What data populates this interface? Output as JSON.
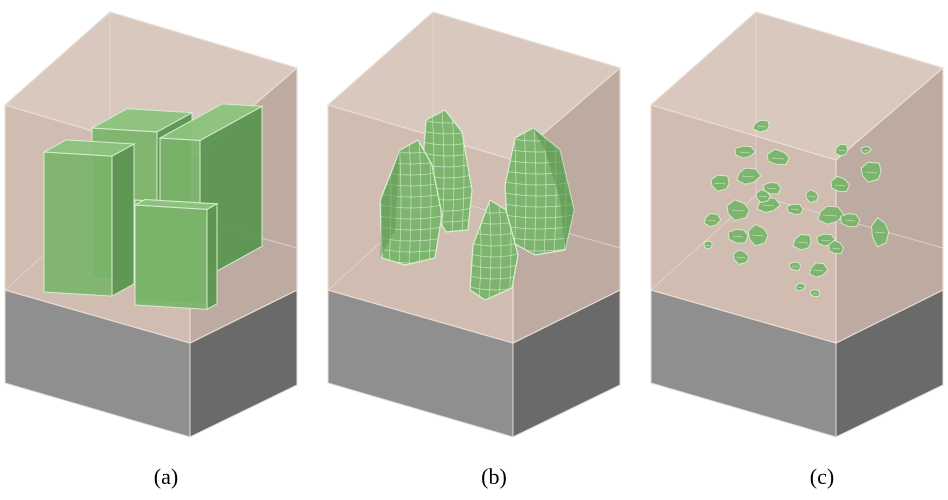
{
  "figure": {
    "panels": [
      {
        "id": "a",
        "label": "(a)",
        "content": "rectangular-blocks"
      },
      {
        "id": "b",
        "label": "(b)",
        "content": "meshed-irregular-bodies"
      },
      {
        "id": "c",
        "label": "(c)",
        "content": "scattered-small-particles"
      }
    ]
  },
  "colors": {
    "soil_front": "#c9b3a6",
    "soil_side": "#b29c90",
    "soil_top": "#d5c2b6",
    "edge": "#e8dcd4",
    "base_front": "#8f8f8f",
    "base_side": "#6a6a6a",
    "inclusion_front": "#79b46a",
    "inclusion_side": "#5c9651",
    "inclusion_top": "#8cc37c",
    "inclusion_edge": "#d7ecd0"
  }
}
